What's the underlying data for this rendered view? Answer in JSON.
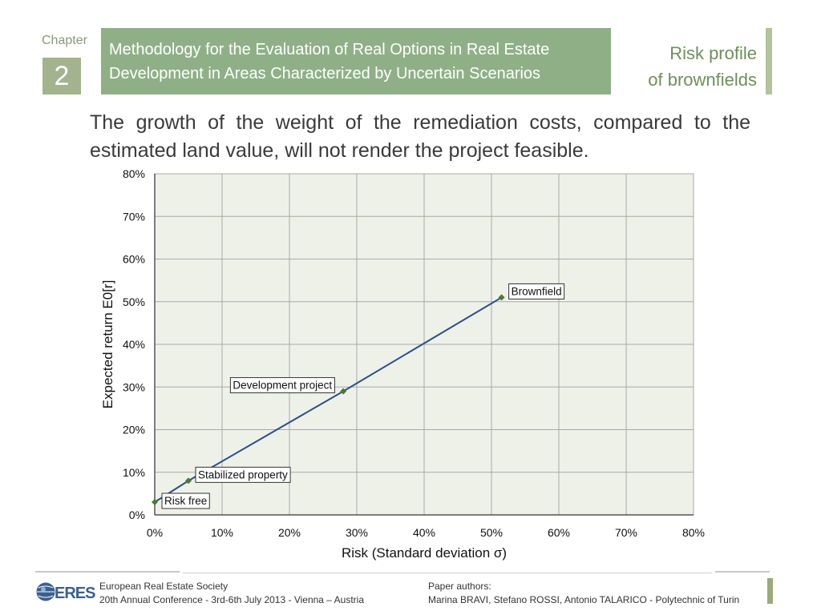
{
  "header": {
    "chapter_label": "Chapter",
    "chapter_number": "2",
    "title_line1": "Methodology for the Evaluation of Real Options in Real Estate",
    "title_line2": "Development in Areas Characterized by Uncertain Scenarios",
    "section_line1": "Risk profile",
    "section_line2": "of brownfields"
  },
  "intro_text": "The growth of the weight of the remediation costs, compared to the estimated land value, will not render the project feasible.",
  "chart_data": {
    "type": "line",
    "xlabel": "Risk (Standard deviation σ)",
    "ylabel": "Expected return E0[r]",
    "xlim": [
      0,
      80
    ],
    "ylim": [
      0,
      80
    ],
    "x_ticks": [
      "0%",
      "10%",
      "20%",
      "30%",
      "40%",
      "50%",
      "60%",
      "70%",
      "80%"
    ],
    "y_ticks": [
      "0%",
      "10%",
      "20%",
      "30%",
      "40%",
      "50%",
      "60%",
      "70%",
      "80%"
    ],
    "grid": true,
    "points": [
      {
        "label": "Risk free",
        "x": 0,
        "y": 3
      },
      {
        "label": "Stabilized property",
        "x": 5,
        "y": 8
      },
      {
        "label": "Development project",
        "x": 28,
        "y": 29
      },
      {
        "label": "Brownfield",
        "x": 51.5,
        "y": 51
      }
    ],
    "colors": {
      "line": "#2b4f86",
      "marker": "#4d7a30",
      "plot_bg": "#eef1e8",
      "grid": "#a9a9a9"
    }
  },
  "footer": {
    "logo_text": "ERES",
    "left_line1": "European Real Estate Society",
    "left_line2": "20th Annual Conference - 3rd-6th July 2013 - Vienna – Austria",
    "right_line1": "Paper authors:",
    "right_line2": "Marina BRAVI, Stefano ROSSI, Antonio TALARICO - Polytechnic of Turin"
  }
}
